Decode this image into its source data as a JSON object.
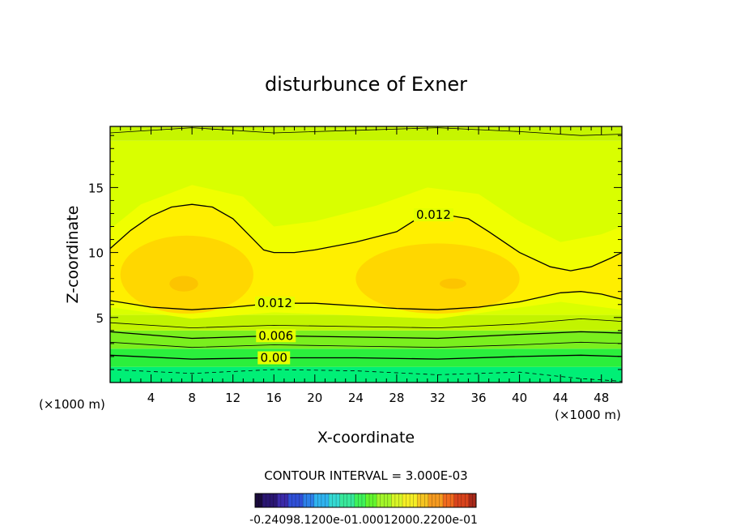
{
  "chart_data": {
    "type": "contour",
    "title": "disturbunce of Exner",
    "xlabel": "X-coordinate",
    "ylabel": "Z-coordinate",
    "x_unit_label": "(×1000 m)",
    "y_unit_label": "(×1000 m)",
    "xlim": [
      0,
      50
    ],
    "ylim": [
      0,
      19.7
    ],
    "x_ticks": [
      4,
      8,
      12,
      16,
      20,
      24,
      28,
      32,
      36,
      40,
      44,
      48
    ],
    "y_ticks": [
      5,
      10,
      15
    ],
    "x_tick_labels": [
      "4",
      "8",
      "12",
      "16",
      "20",
      "24",
      "28",
      "32",
      "36",
      "40",
      "44",
      "48"
    ],
    "y_tick_labels": [
      "5",
      "10",
      "15"
    ],
    "contour_interval_text": "CONTOUR INTERVAL = 3.000E-03",
    "contour_interval": 0.003,
    "contour_labels": [
      {
        "text": "0.012",
        "x": 31.6,
        "z": 12.9
      },
      {
        "text": "0.012",
        "x": 16.1,
        "z": 6.1
      },
      {
        "text": "0.006",
        "x": 16.2,
        "z": 3.6
      },
      {
        "text": "0.00",
        "x": 16.0,
        "z": 1.9
      }
    ],
    "contour_lines": [
      {
        "level": 0.012,
        "style": "solid",
        "width": 1.3,
        "points": [
          [
            0,
            10.3
          ],
          [
            2,
            11.7
          ],
          [
            4,
            12.8
          ],
          [
            6,
            13.5
          ],
          [
            8,
            13.7
          ],
          [
            10,
            13.5
          ],
          [
            12,
            12.6
          ],
          [
            14,
            11.0
          ],
          [
            15,
            10.2
          ],
          [
            16,
            10.0
          ],
          [
            18,
            10.0
          ],
          [
            20,
            10.2
          ],
          [
            24,
            10.8
          ],
          [
            28,
            11.6
          ],
          [
            30,
            12.6
          ],
          [
            32,
            13.0
          ],
          [
            35,
            12.6
          ],
          [
            37,
            11.6
          ],
          [
            40,
            10.0
          ],
          [
            43,
            8.9
          ],
          [
            45,
            8.6
          ],
          [
            47,
            8.9
          ],
          [
            49,
            9.6
          ],
          [
            50,
            10.0
          ]
        ]
      },
      {
        "level": 0.012,
        "style": "solid",
        "width": 1.3,
        "points": [
          [
            0,
            6.3
          ],
          [
            4,
            5.8
          ],
          [
            8,
            5.6
          ],
          [
            12,
            5.8
          ],
          [
            16,
            6.1
          ],
          [
            20,
            6.1
          ],
          [
            24,
            5.9
          ],
          [
            28,
            5.7
          ],
          [
            32,
            5.6
          ],
          [
            36,
            5.8
          ],
          [
            40,
            6.2
          ],
          [
            44,
            6.9
          ],
          [
            46,
            7.0
          ],
          [
            48,
            6.8
          ],
          [
            50,
            6.4
          ]
        ]
      },
      {
        "level": 0.009,
        "style": "solid",
        "width": 0.8,
        "points": [
          [
            0,
            4.6
          ],
          [
            8,
            4.2
          ],
          [
            16,
            4.4
          ],
          [
            24,
            4.3
          ],
          [
            32,
            4.2
          ],
          [
            40,
            4.5
          ],
          [
            46,
            4.9
          ],
          [
            50,
            4.7
          ]
        ]
      },
      {
        "level": 0.006,
        "style": "solid",
        "width": 1.3,
        "points": [
          [
            0,
            3.9
          ],
          [
            8,
            3.4
          ],
          [
            16,
            3.6
          ],
          [
            24,
            3.5
          ],
          [
            32,
            3.4
          ],
          [
            40,
            3.7
          ],
          [
            46,
            3.9
          ],
          [
            50,
            3.8
          ]
        ]
      },
      {
        "level": 0.003,
        "style": "solid",
        "width": 0.8,
        "points": [
          [
            0,
            3.1
          ],
          [
            8,
            2.7
          ],
          [
            16,
            2.9
          ],
          [
            24,
            2.8
          ],
          [
            32,
            2.7
          ],
          [
            40,
            2.9
          ],
          [
            46,
            3.1
          ],
          [
            50,
            3.0
          ]
        ]
      },
      {
        "level": 0.0,
        "style": "solid",
        "width": 1.3,
        "points": [
          [
            0,
            2.1
          ],
          [
            8,
            1.8
          ],
          [
            16,
            1.9
          ],
          [
            24,
            1.9
          ],
          [
            32,
            1.8
          ],
          [
            40,
            2.0
          ],
          [
            46,
            2.1
          ],
          [
            50,
            2.0
          ]
        ]
      },
      {
        "level": -0.003,
        "style": "dashed",
        "width": 0.8,
        "points": [
          [
            0,
            1.0
          ],
          [
            8,
            0.7
          ],
          [
            16,
            1.0
          ],
          [
            24,
            0.9
          ],
          [
            32,
            0.6
          ],
          [
            40,
            0.8
          ],
          [
            46,
            0.3
          ],
          [
            50,
            0.1
          ]
        ]
      },
      {
        "level": 0.003,
        "style": "solid",
        "width": 0.8,
        "points": [
          [
            0,
            19.2
          ],
          [
            8,
            19.6
          ],
          [
            16,
            19.2
          ],
          [
            24,
            19.4
          ],
          [
            32,
            19.6
          ],
          [
            40,
            19.3
          ],
          [
            46,
            19.0
          ],
          [
            50,
            19.1
          ]
        ]
      }
    ],
    "colorbar": {
      "label_text": "-0.24098.1200e-01.00012000.2200e-01",
      "min": -0.024,
      "max": 0.024,
      "colors": [
        "#1a0b3c",
        "#2a1672",
        "#3b2aa8",
        "#2f4fd6",
        "#2c7fe8",
        "#2fb3ef",
        "#35d9d2",
        "#38e89b",
        "#3ff25a",
        "#63f52d",
        "#a2f52a",
        "#d8f528",
        "#f5ee25",
        "#f5c422",
        "#f59a20",
        "#f06a1e",
        "#d8431c",
        "#a82a1a"
      ]
    },
    "fill_colors": {
      "bottom": "#00ef76",
      "low": "#2bef3c",
      "mid_low": "#7aef1e",
      "mid": "#c2f400",
      "upper": "#d9ff00",
      "top_band": "#c6f500",
      "core_outer": "#ffef00",
      "core_mid": "#ffd700",
      "core_inner": "#fcc400"
    }
  }
}
